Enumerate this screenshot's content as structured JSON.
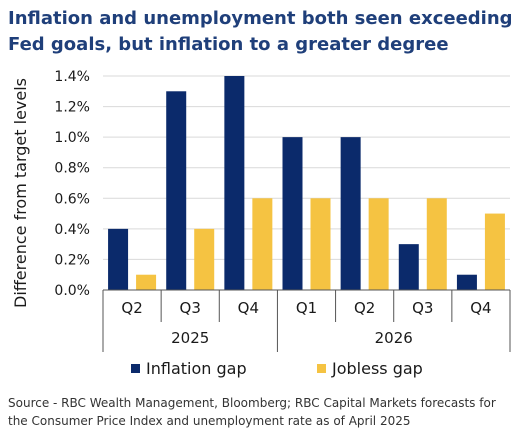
{
  "title": "Inflation and unemployment both seen exceeding Fed goals, but inflation to a greater degree",
  "source": "Source - RBC Wealth Management, Bloomberg; RBC Capital Markets forecasts for the Consumer Price Index and unemployment rate as of April 2025",
  "colors": {
    "inflation": "#0b2a6b",
    "jobless": "#f5c342",
    "grid": "#d9d9d9",
    "axis": "#555555"
  },
  "chart_data": {
    "type": "bar",
    "title": "Inflation and unemployment both seen exceeding Fed goals, but inflation to a greater degree",
    "ylabel": "Difference from target levels",
    "xlabel": "",
    "categories": [
      "Q2",
      "Q3",
      "Q4",
      "Q1",
      "Q2",
      "Q3",
      "Q4"
    ],
    "groups": [
      {
        "label": "2025",
        "count": 3
      },
      {
        "label": "2026",
        "count": 4
      }
    ],
    "series": [
      {
        "name": "Inflation gap",
        "values": [
          0.4,
          1.3,
          1.4,
          1.0,
          1.0,
          0.3,
          0.1
        ]
      },
      {
        "name": "Jobless gap",
        "values": [
          0.1,
          0.4,
          0.6,
          0.6,
          0.6,
          0.6,
          0.5
        ]
      }
    ],
    "ylim": [
      0,
      1.4
    ],
    "yticks": [
      "0.0%",
      "0.2%",
      "0.4%",
      "0.6%",
      "0.8%",
      "1.0%",
      "1.2%",
      "1.4%"
    ],
    "grid": true,
    "legend_position": "bottom"
  }
}
